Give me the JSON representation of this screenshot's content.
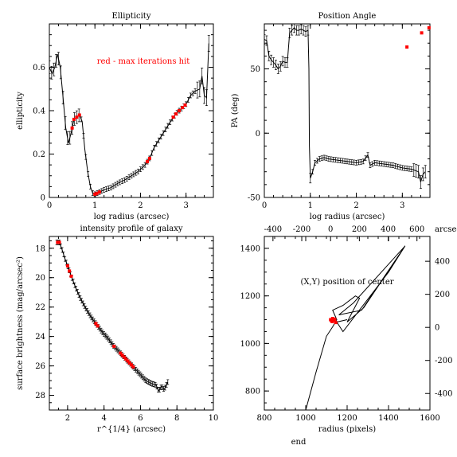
{
  "footer": {
    "text": "end"
  },
  "colors": {
    "ink": "#000000",
    "flag": "#ff0000"
  },
  "chart_data": [
    {
      "id": "ellipticity",
      "type": "line",
      "title": "Ellipticity",
      "xlabel": "log radius (arcsec)",
      "ylabel": "ellipticity",
      "annotation": "red - max iterations hit",
      "xlim": [
        0,
        3.6
      ],
      "ylim": [
        0,
        0.8
      ],
      "xticks": [
        0,
        1,
        2,
        3
      ],
      "yticks": [
        0,
        0.2,
        0.4,
        0.6
      ],
      "series": [
        {
          "x": [
            0,
            0.06,
            0.12,
            0.18,
            0.24,
            0.3,
            0.36,
            0.42,
            0.48,
            0.54,
            0.6,
            0.66,
            0.72,
            0.78,
            0.84,
            0.9,
            0.95,
            1.0,
            1.1,
            1.2,
            1.35,
            1.5,
            1.65,
            1.8,
            1.95,
            2.1,
            2.2,
            2.3,
            2.45,
            2.6,
            2.72,
            2.8,
            2.9,
            3.0,
            3.1,
            3.2,
            3.3,
            3.35,
            3.4,
            3.45,
            3.5
          ],
          "y": [
            0.6,
            0.57,
            0.6,
            0.66,
            0.6,
            0.46,
            0.32,
            0.25,
            0.3,
            0.36,
            0.37,
            0.38,
            0.35,
            0.22,
            0.12,
            0.05,
            0.02,
            0.015,
            0.025,
            0.035,
            0.045,
            0.065,
            0.08,
            0.1,
            0.12,
            0.15,
            0.18,
            0.23,
            0.28,
            0.33,
            0.37,
            0.39,
            0.41,
            0.43,
            0.47,
            0.49,
            0.5,
            0.56,
            0.47,
            0.46,
            0.71
          ],
          "flagged_x": [
            0.5,
            0.54,
            0.6,
            0.66,
            1.0,
            1.04,
            1.1,
            2.15,
            2.2,
            2.72,
            2.78,
            2.85,
            2.92,
            2.98
          ]
        }
      ]
    },
    {
      "id": "position_angle",
      "type": "line",
      "title": "Position Angle",
      "xlabel": "log radius (arcsec)",
      "ylabel": "PA (deg)",
      "xlim": [
        0,
        3.6
      ],
      "ylim": [
        -50,
        85
      ],
      "xticks": [
        0,
        1,
        2,
        3
      ],
      "yticks": [
        -50,
        0,
        50
      ],
      "series": [
        {
          "x": [
            0,
            0.05,
            0.1,
            0.15,
            0.2,
            0.25,
            0.3,
            0.35,
            0.4,
            0.45,
            0.5,
            0.55,
            0.6,
            0.65,
            0.7,
            0.75,
            0.8,
            0.85,
            0.9,
            0.95,
            0.97,
            0.98,
            1.0,
            1.05,
            1.1,
            1.2,
            1.3,
            1.4,
            1.6,
            1.8,
            2.0,
            2.15,
            2.25,
            2.3,
            2.4,
            2.6,
            2.8,
            3.0,
            3.2,
            3.35,
            3.4,
            3.45,
            3.5
          ],
          "y": [
            73,
            72,
            60,
            57,
            55,
            53,
            50,
            52,
            56,
            55,
            55,
            78,
            80,
            82,
            80,
            80,
            81,
            80,
            79,
            80,
            50,
            -10,
            -35,
            -30,
            -23,
            -20,
            -19,
            -20,
            -21,
            -22,
            -23,
            -22,
            -17,
            -25,
            -23,
            -24,
            -25,
            -27,
            -28,
            -30,
            -38,
            -32,
            -30
          ],
          "flagged": [
            {
              "x": 3.1,
              "y": 67
            },
            {
              "x": 3.42,
              "y": 78
            },
            {
              "x": 3.58,
              "y": 82
            }
          ]
        }
      ]
    },
    {
      "id": "surface_brightness",
      "type": "line",
      "title": "intensity profile of galaxy",
      "xlabel": "r^{1/4} (arcsec)",
      "ylabel": "surface brightness (mag/arcsec²)",
      "xlim": [
        1,
        10
      ],
      "ylim": [
        29,
        17.2
      ],
      "xticks": [
        2,
        4,
        6,
        8,
        10
      ],
      "yticks": [
        18,
        20,
        22,
        24,
        26,
        28
      ],
      "series": [
        {
          "x": [
            1.4,
            1.55,
            1.7,
            1.85,
            2.0,
            2.2,
            2.45,
            2.7,
            3.0,
            3.3,
            3.6,
            3.9,
            4.2,
            4.5,
            4.8,
            5.1,
            5.4,
            5.7,
            6.0,
            6.3,
            6.6,
            6.85,
            7.0,
            7.15,
            7.3,
            7.5
          ],
          "y": [
            17.6,
            17.6,
            18.1,
            18.7,
            19.2,
            19.9,
            20.7,
            21.4,
            22.1,
            22.7,
            23.2,
            23.7,
            24.1,
            24.6,
            25.0,
            25.4,
            25.8,
            26.2,
            26.6,
            27.0,
            27.2,
            27.3,
            27.7,
            27.4,
            27.6,
            27.1
          ],
          "flagged_x": [
            1.45,
            1.55,
            2.0,
            2.1,
            2.2,
            3.55,
            3.65,
            4.55,
            4.9,
            5.0,
            5.1,
            5.2,
            5.3,
            5.4,
            5.5,
            5.6
          ]
        }
      ]
    },
    {
      "id": "center_position",
      "type": "line",
      "title": "",
      "xlabel": "radius (pixels)",
      "annotation": "(X,Y) position of center",
      "secondary_xlabel": "arcsec",
      "xlim": [
        800,
        1600
      ],
      "ylim": [
        720,
        1450
      ],
      "xticks": [
        800,
        1000,
        1200,
        1400,
        1600
      ],
      "yticks": [
        800,
        1000,
        1200,
        1400
      ],
      "top_xticks": [
        -400,
        -200,
        0,
        200,
        400,
        600
      ],
      "top_xlim": [
        -460,
        690
      ],
      "right_yticks": [
        400,
        200,
        0,
        -200,
        -400
      ],
      "right_ylim": [
        -500,
        550
      ],
      "series": [
        {
          "x": [
            1000,
            1050,
            1100,
            1130,
            1150,
            1130,
            1180,
            1240,
            1260,
            1200,
            1280,
            1480,
            1230,
            1160,
            1270,
            1480,
            1400,
            1180,
            1150,
            1200
          ],
          "y": [
            720,
            880,
            1030,
            1070,
            1100,
            1140,
            1160,
            1200,
            1190,
            1090,
            1150,
            1410,
            1170,
            1120,
            1140,
            1410,
            1300,
            1050,
            1090,
            1100
          ],
          "flagged": [
            {
              "x": 1120,
              "y": 1100
            },
            {
              "x": 1125,
              "y": 1095
            },
            {
              "x": 1130,
              "y": 1105
            },
            {
              "x": 1135,
              "y": 1098
            },
            {
              "x": 1140,
              "y": 1102
            },
            {
              "x": 1128,
              "y": 1092
            },
            {
              "x": 1145,
              "y": 1088
            }
          ]
        }
      ]
    }
  ]
}
